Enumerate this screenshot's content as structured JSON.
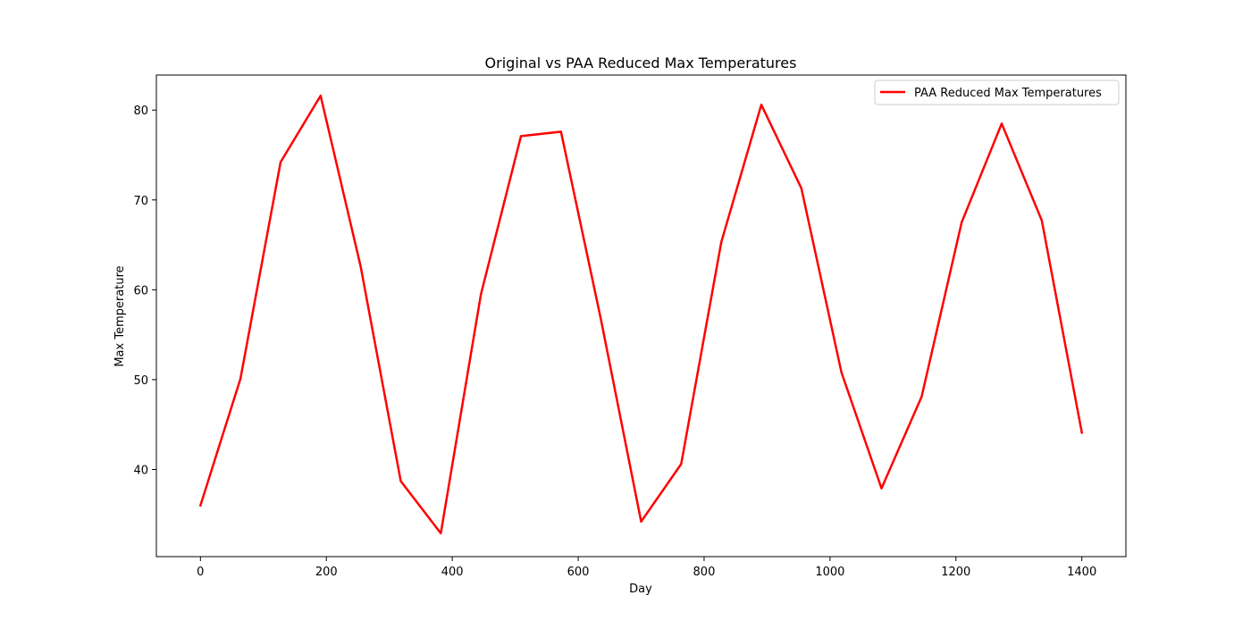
{
  "chart_data": {
    "type": "line",
    "title": "Original vs PAA Reduced Max Temperatures",
    "xlabel": "Day",
    "ylabel": "Max Temperature",
    "xlim": [
      -70,
      1470
    ],
    "ylim": [
      30.3,
      83.9
    ],
    "xticks": [
      0,
      200,
      400,
      600,
      800,
      1000,
      1200,
      1400
    ],
    "yticks": [
      40,
      50,
      60,
      70,
      80
    ],
    "grid": false,
    "legend_position": "top-right",
    "series": [
      {
        "name": "PAA Reduced Max Temperatures",
        "color": "#ff0000",
        "x": [
          0,
          63.6,
          127.3,
          190.9,
          254.5,
          318.2,
          381.8,
          445.5,
          509.1,
          572.7,
          636.4,
          700,
          763.6,
          827.3,
          890.9,
          954.5,
          1018.2,
          1081.8,
          1145.5,
          1209.1,
          1272.7,
          1336.4,
          1400
        ],
        "y": [
          36.0,
          50.1,
          74.2,
          81.6,
          62.6,
          38.7,
          32.9,
          59.5,
          77.1,
          77.6,
          56.6,
          34.2,
          40.6,
          65.3,
          80.6,
          71.3,
          50.8,
          37.9,
          48.1,
          67.5,
          78.5,
          67.7,
          44.1
        ]
      }
    ]
  }
}
